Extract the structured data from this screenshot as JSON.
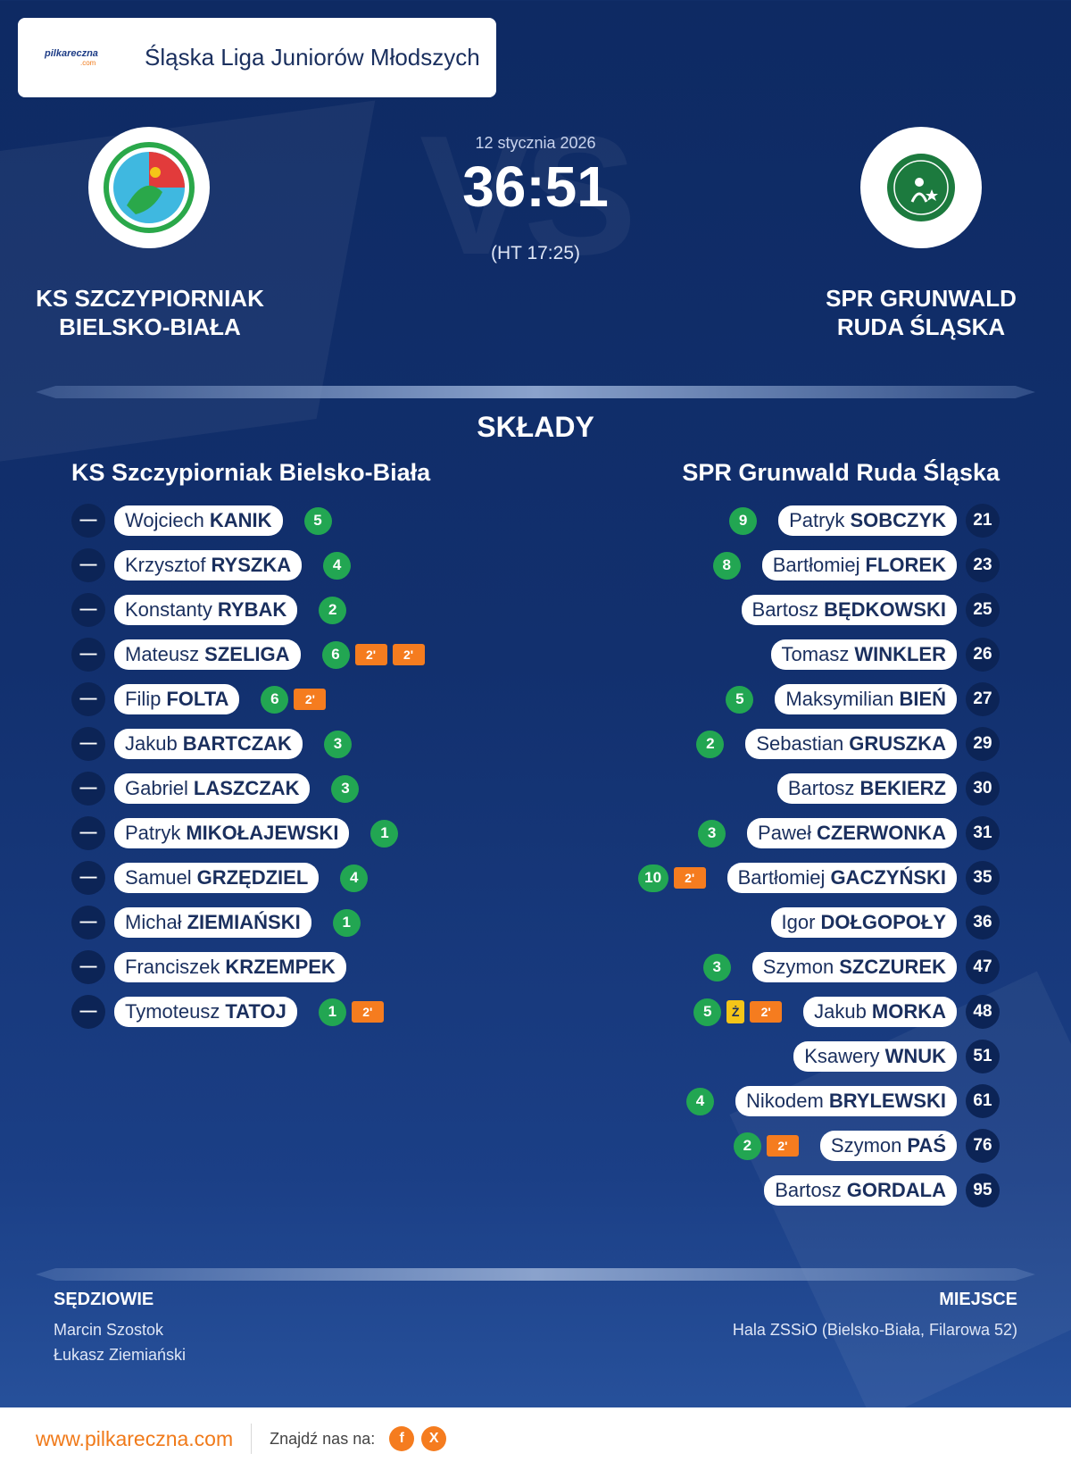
{
  "league": {
    "logo_text": "pilkareczna",
    "logo_sub": ".com",
    "name": "Śląska Liga Juniorów Młodszych"
  },
  "match": {
    "date": "12 stycznia 2026",
    "score": "36:51",
    "halftime": "(HT 17:25)",
    "bg_text": "VS"
  },
  "home_team": {
    "name_line1": "KS SZCZYPIORNIAK",
    "name_line2": "BIELSKO-BIAŁA",
    "roster_title": "KS Szczypiorniak Bielsko-Biała",
    "players": [
      {
        "number": "—",
        "first": "Wojciech",
        "last": "KANIK",
        "goals": "5",
        "suspensions": []
      },
      {
        "number": "—",
        "first": "Krzysztof",
        "last": "RYSZKA",
        "goals": "4",
        "suspensions": []
      },
      {
        "number": "—",
        "first": "Konstanty",
        "last": "RYBAK",
        "goals": "2",
        "suspensions": []
      },
      {
        "number": "—",
        "first": "Mateusz",
        "last": "SZELIGA",
        "goals": "6",
        "suspensions": [
          "2'",
          "2'"
        ]
      },
      {
        "number": "—",
        "first": "Filip",
        "last": "FOLTA",
        "goals": "6",
        "suspensions": [
          "2'"
        ]
      },
      {
        "number": "—",
        "first": "Jakub",
        "last": "BARTCZAK",
        "goals": "3",
        "suspensions": []
      },
      {
        "number": "—",
        "first": "Gabriel",
        "last": "LASZCZAK",
        "goals": "3",
        "suspensions": []
      },
      {
        "number": "—",
        "first": "Patryk",
        "last": "MIKOŁAJEWSKI",
        "goals": "1",
        "suspensions": []
      },
      {
        "number": "—",
        "first": "Samuel",
        "last": "GRZĘDZIEL",
        "goals": "4",
        "suspensions": []
      },
      {
        "number": "—",
        "first": "Michał",
        "last": "ZIEMIAŃSKI",
        "goals": "1",
        "suspensions": []
      },
      {
        "number": "—",
        "first": "Franciszek",
        "last": "KRZEMPEK",
        "goals": null,
        "suspensions": []
      },
      {
        "number": "—",
        "first": "Tymoteusz",
        "last": "TATOJ",
        "goals": "1",
        "suspensions": [
          "2'"
        ]
      }
    ]
  },
  "away_team": {
    "name_line1": "SPR GRUNWALD",
    "name_line2": "RUDA ŚLĄSKA",
    "roster_title": "SPR Grunwald Ruda Śląska",
    "players": [
      {
        "number": "21",
        "first": "Patryk",
        "last": "SOBCZYK",
        "goals": "9",
        "yellow": false,
        "suspensions": []
      },
      {
        "number": "23",
        "first": "Bartłomiej",
        "last": "FLOREK",
        "goals": "8",
        "yellow": false,
        "suspensions": []
      },
      {
        "number": "25",
        "first": "Bartosz",
        "last": "BĘDKOWSKI",
        "goals": null,
        "yellow": false,
        "suspensions": []
      },
      {
        "number": "26",
        "first": "Tomasz",
        "last": "WINKLER",
        "goals": null,
        "yellow": false,
        "suspensions": []
      },
      {
        "number": "27",
        "first": "Maksymilian",
        "last": "BIEŃ",
        "goals": "5",
        "yellow": false,
        "suspensions": []
      },
      {
        "number": "29",
        "first": "Sebastian",
        "last": "GRUSZKA",
        "goals": "2",
        "yellow": false,
        "suspensions": []
      },
      {
        "number": "30",
        "first": "Bartosz",
        "last": "BEKIERZ",
        "goals": null,
        "yellow": false,
        "suspensions": []
      },
      {
        "number": "31",
        "first": "Paweł",
        "last": "CZERWONKA",
        "goals": "3",
        "yellow": false,
        "suspensions": []
      },
      {
        "number": "35",
        "first": "Bartłomiej",
        "last": "GACZYŃSKI",
        "goals": "10",
        "yellow": false,
        "suspensions": [
          "2'"
        ]
      },
      {
        "number": "36",
        "first": "Igor",
        "last": "DOŁGOPOŁY",
        "goals": null,
        "yellow": false,
        "suspensions": []
      },
      {
        "number": "47",
        "first": "Szymon",
        "last": "SZCZUREK",
        "goals": "3",
        "yellow": false,
        "suspensions": []
      },
      {
        "number": "48",
        "first": "Jakub",
        "last": "MORKA",
        "goals": "5",
        "yellow": true,
        "yellow_label": "Ż",
        "suspensions": [
          "2'"
        ]
      },
      {
        "number": "51",
        "first": "Ksawery",
        "last": "WNUK",
        "goals": null,
        "yellow": false,
        "suspensions": []
      },
      {
        "number": "61",
        "first": "Nikodem",
        "last": "BRYLEWSKI",
        "goals": "4",
        "yellow": false,
        "suspensions": []
      },
      {
        "number": "76",
        "first": "Szymon",
        "last": "PAŚ",
        "goals": "2",
        "yellow": false,
        "suspensions": [
          "2'"
        ]
      },
      {
        "number": "95",
        "first": "Bartosz",
        "last": "GORDALA",
        "goals": null,
        "yellow": false,
        "suspensions": []
      }
    ]
  },
  "section_title": "SKŁADY",
  "referees": {
    "title": "SĘDZIOWIE",
    "names": [
      "Marcin Szostok",
      "Łukasz Ziemiański"
    ]
  },
  "venue": {
    "title": "MIEJSCE",
    "name": "Hala ZSSiO (Bielsko-Biała, Filarowa 52)"
  },
  "footer": {
    "site": "www.pilkareczna.com",
    "find_label": "Znajdź nas na:",
    "social": [
      {
        "icon": "facebook-icon",
        "glyph": "f"
      },
      {
        "icon": "x-icon",
        "glyph": "X"
      }
    ]
  },
  "colors": {
    "goals": "#22a652",
    "suspension": "#f57c1f",
    "yellow_card": "#f5c518",
    "accent": "#f07a1a"
  }
}
